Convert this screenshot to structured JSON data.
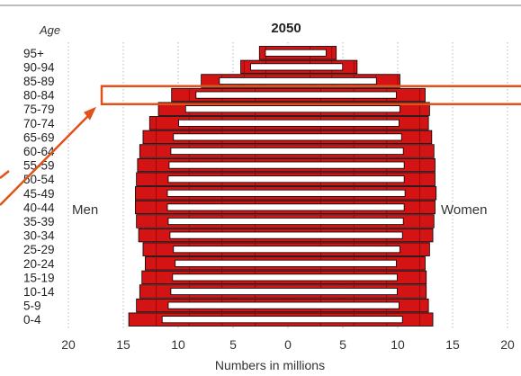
{
  "chart_data": {
    "type": "bar",
    "title": "2050",
    "xlabel": "Numbers in millions",
    "ylabel": "Age",
    "xlim": [
      -20,
      20
    ],
    "xticks": [
      -20,
      -15,
      -10,
      -5,
      0,
      5,
      10,
      15,
      20
    ],
    "xtick_labels": [
      "20",
      "15",
      "10",
      "5",
      "0",
      "5",
      "10",
      "15",
      "20"
    ],
    "grid": "vertical dotted",
    "categories": [
      "0-4",
      "5-9",
      "10-14",
      "15-19",
      "20-24",
      "25-29",
      "30-34",
      "35-39",
      "40-44",
      "45-49",
      "50-54",
      "55-59",
      "60-64",
      "65-69",
      "70-74",
      "75-79",
      "80-84",
      "85-89",
      "90-94",
      "95+"
    ],
    "series": [
      {
        "name": "Men",
        "side": "left",
        "values": [
          14.5,
          13.8,
          13.5,
          13.3,
          13.0,
          13.2,
          13.6,
          13.8,
          13.9,
          13.9,
          13.8,
          13.7,
          13.5,
          13.2,
          12.6,
          11.8,
          10.6,
          7.9,
          4.3,
          2.6
        ]
      },
      {
        "name": "Women",
        "side": "right",
        "values": [
          13.2,
          12.8,
          12.6,
          12.6,
          12.5,
          12.9,
          13.2,
          13.3,
          13.4,
          13.5,
          13.4,
          13.4,
          13.3,
          13.1,
          12.8,
          12.9,
          12.5,
          10.2,
          6.3,
          4.4
        ]
      }
    ],
    "annotations": [
      {
        "type": "highlight-box",
        "categories": [
          "80-84",
          "75-79"
        ],
        "color": "#e0521a"
      },
      {
        "type": "arrow",
        "target": "75-79",
        "color": "#e0521a"
      }
    ],
    "colors": {
      "bar": "#d41414",
      "bar_edge": "#000000",
      "inner_bar": "#ffffff",
      "annotation": "#e0521a"
    }
  }
}
